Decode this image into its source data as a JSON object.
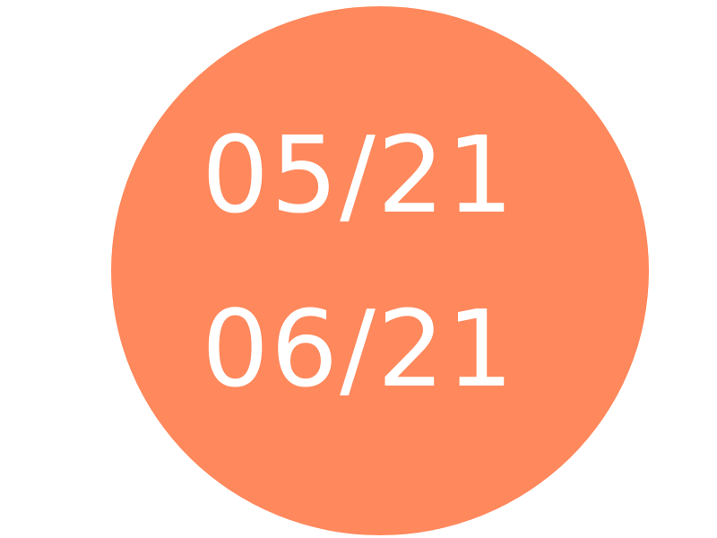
{
  "badge": {
    "dates": [
      "05/21",
      "06/21"
    ],
    "circle_color": "#ff885c",
    "text_color": "#ffffff",
    "background_color": "#ffffff"
  }
}
